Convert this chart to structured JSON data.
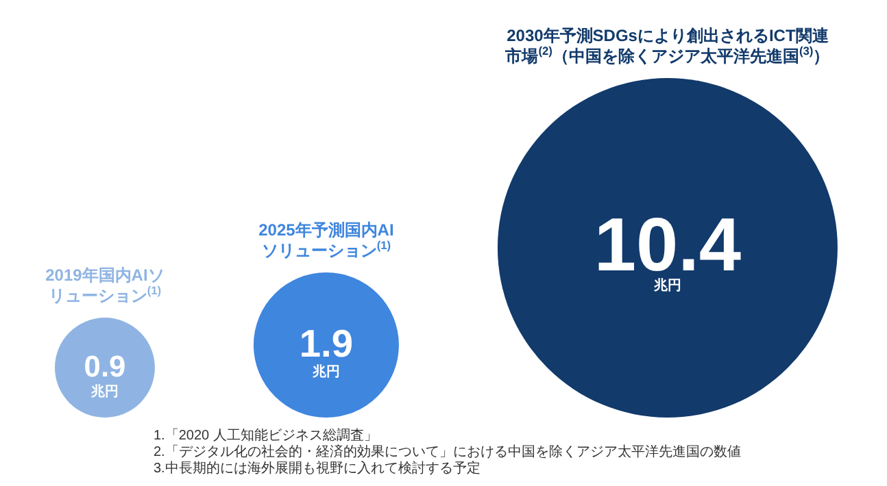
{
  "chart_data": {
    "type": "other",
    "categories": [
      "2019年国内AIソリューション$^{(1)}$",
      "2025年予測国内AIソリューション$^{(1)}$",
      "2030年予測SDGsにより創出されるICT関連市場$^{(2)}$（中国を除くアジア太平洋先進国$^{(3)}$）"
    ],
    "values": [
      0.9,
      1.9,
      10.4
    ],
    "data_labels": true,
    "colors": [
      "#8fb4e3",
      "#3f86de",
      "#123a6b"
    ],
    "annotations": [
      {
        "text": "兆円",
        "x": "2019年国内AIソリューション$^{(1)}$"
      },
      {
        "text": "兆円",
        "x": "2025年予測国内AIソリューション$^{(1)}$"
      },
      {
        "text": "兆円",
        "x": "2030年予測SDGsにより創出されるICT関連市場$^{(2)}$（中国を除くアジア太平洋先進国$^{(3)}$）"
      },
      "1.「2020 人工知能ビジネス総調査」",
      "2.「デジタル化の社会的・経済的効果について」における中国を除くアジア太平洋先進国の数値",
      "3.中長期的には海外展開も視野に入れて検討する予定"
    ]
  }
}
